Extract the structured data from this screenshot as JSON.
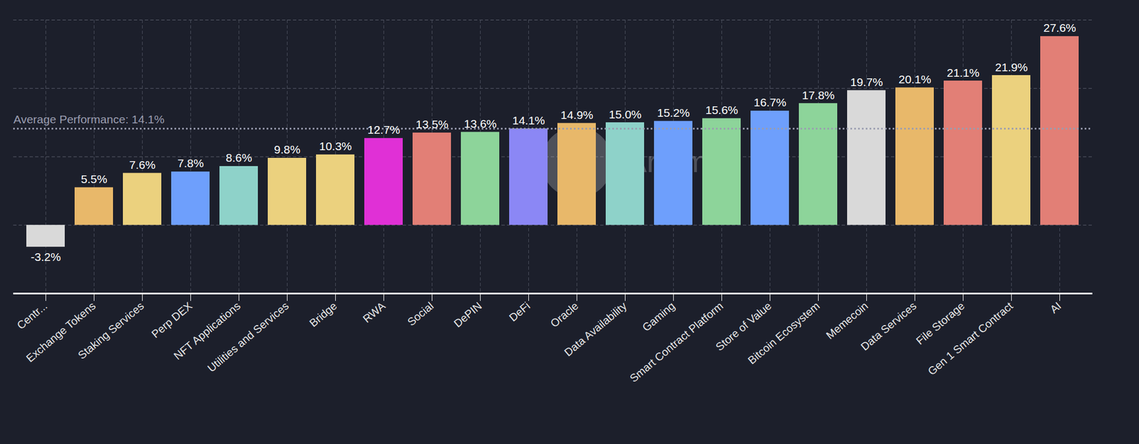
{
  "chart_data": {
    "type": "bar",
    "categories": [
      "Centr...",
      "Exchange Tokens",
      "Staking Services",
      "Perp DEX",
      "NFT Applications",
      "Utilities and Services",
      "Bridge",
      "RWA",
      "Social",
      "DePIN",
      "DeFi",
      "Oracle",
      "Data Availability",
      "Gaming",
      "Smart Contract Platform",
      "Store of Value",
      "Bitcoin Ecosystem",
      "Memecoin",
      "Data Services",
      "File Storage",
      "Gen 1 Smart Contract",
      "AI"
    ],
    "values": [
      -3.2,
      5.5,
      7.6,
      7.8,
      8.6,
      9.8,
      10.3,
      12.7,
      13.5,
      13.6,
      14.1,
      14.9,
      15.0,
      15.2,
      15.6,
      16.7,
      17.8,
      19.7,
      20.1,
      21.1,
      21.9,
      27.6
    ],
    "value_labels": [
      "-3.2%",
      "5.5%",
      "7.6%",
      "7.8%",
      "8.6%",
      "9.8%",
      "10.3%",
      "12.7%",
      "13.5%",
      "13.6%",
      "14.1%",
      "14.9%",
      "15.0%",
      "15.2%",
      "15.6%",
      "16.7%",
      "17.8%",
      "19.7%",
      "20.1%",
      "21.1%",
      "21.9%",
      "27.6%"
    ],
    "colors": [
      "#d9d9d9",
      "#e8b86a",
      "#ebd17e",
      "#6e9ffc",
      "#8ed2c9",
      "#ebd17e",
      "#ebd17e",
      "#e030d6",
      "#e27f76",
      "#8dd49a",
      "#8b87f5",
      "#e8b86a",
      "#8ed2c9",
      "#6e9ffc",
      "#8dd49a",
      "#6e9ffc",
      "#8dd49a",
      "#d9d9d9",
      "#e8b86a",
      "#e27f76",
      "#ebd17e",
      "#e27f76"
    ],
    "ylim": [
      -10,
      30
    ],
    "yticks": [
      -10,
      0,
      10,
      20,
      30
    ],
    "grid": true,
    "tick_labels": "x",
    "data_labels": true,
    "annotations": [
      {
        "y": 14.1,
        "text": "Average Performance: 14.1%"
      },
      {
        "text": "Artemis"
      }
    ]
  }
}
